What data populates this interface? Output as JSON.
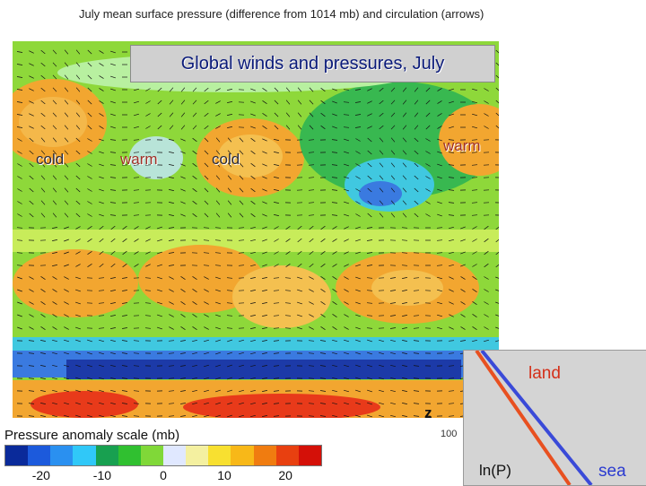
{
  "figure_title": "July mean surface pressure (difference from 1014 mb) and circulation (arrows)",
  "slide_title": "Global winds and pressures, July",
  "map_labels": {
    "cold_west": "cold",
    "warm_1": "warm",
    "cold_east": "cold",
    "warm_2": "warm"
  },
  "scale": {
    "title": "Pressure anomaly scale (mb)",
    "ticks": [
      "-20",
      "-10",
      "0",
      "10",
      "20"
    ],
    "tick_values": [
      -20,
      -10,
      0,
      10,
      20
    ],
    "range": [
      -26,
      26
    ],
    "colors": [
      "#0a2a9a",
      "#1c5adc",
      "#2a90f0",
      "#30c8f8",
      "#18a050",
      "#30c030",
      "#80d838",
      "#e0e8ff",
      "#f4f0a0",
      "#f8e030",
      "#f8b818",
      "#f07c10",
      "#e84010",
      "#d41008"
    ]
  },
  "inset": {
    "z_label": "z",
    "tick_100": "100",
    "land_label": "land",
    "lnp_label": "ln(P)",
    "sea_label": "sea",
    "land_color": "#e85020",
    "sea_color": "#3a4ad8"
  },
  "map_colors": {
    "base": "#8ed83a",
    "warm_yellow": "#f0e030",
    "warm_orange": "#f2a630",
    "cold_green": "#38b850",
    "cool_cyan": "#40c8e0",
    "cool_blue": "#3a7ae0",
    "deep_blue": "#1c3aa8",
    "red": "#e83a1a",
    "arrow": "#111111"
  }
}
